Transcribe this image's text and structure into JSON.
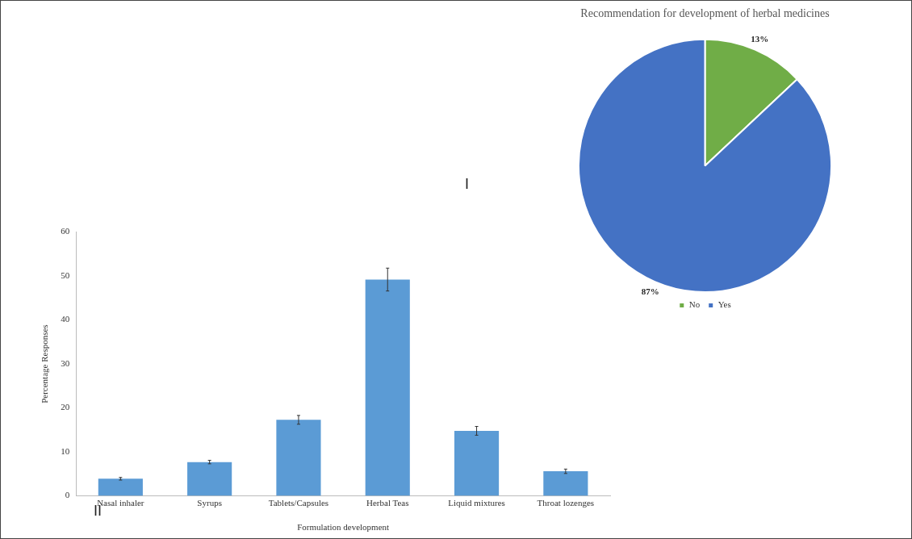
{
  "chart_data": [
    {
      "type": "pie",
      "title": "Recommendation for development of herbal medicines",
      "categories": [
        "No",
        "Yes"
      ],
      "values": [
        13,
        87
      ],
      "colors": [
        "#70ad47",
        "#4472c4"
      ],
      "value_labels": [
        "13%",
        "87%"
      ],
      "legend": "bottom",
      "annotations": [
        "I"
      ]
    },
    {
      "type": "bar",
      "xlabel": "Formulation development",
      "ylabel": "Percentage Responses",
      "categories": [
        "Nasal inhaler",
        "Syrups",
        "Tablets/Capsules",
        "Herbal Teas",
        "Liquid mixtures",
        "Throat lozenges"
      ],
      "values": [
        3.9,
        7.7,
        17.3,
        49.2,
        14.8,
        5.6
      ],
      "errors": [
        0.3,
        0.4,
        1,
        2.6,
        1,
        0.5
      ],
      "color": "#5b9bd5",
      "ylim": [
        0,
        60
      ],
      "yticks": [
        0,
        10,
        20,
        30,
        40,
        50,
        60
      ],
      "grid": false,
      "legend": false,
      "annotations": [
        "II"
      ]
    }
  ]
}
